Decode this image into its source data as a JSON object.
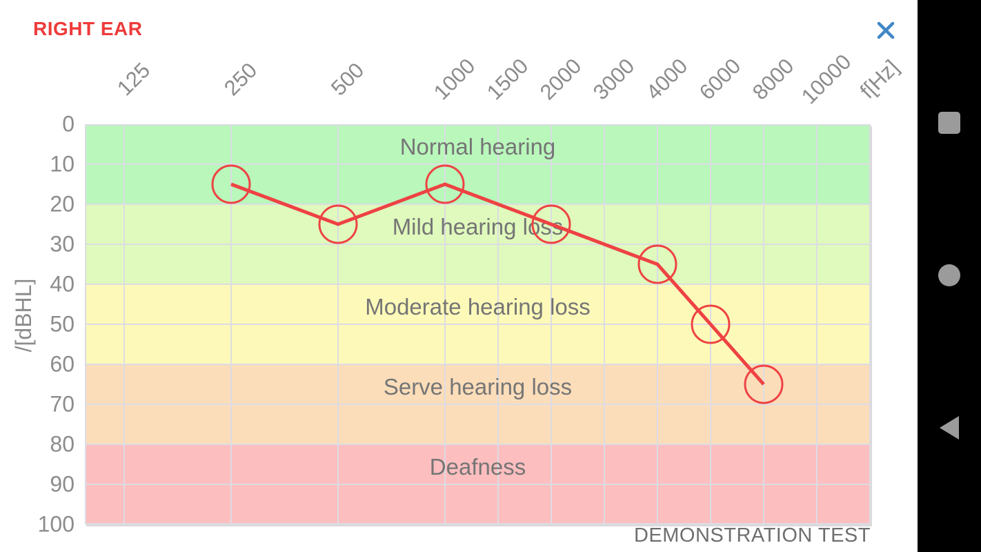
{
  "header": {
    "title": "RIGHT EAR"
  },
  "colors": {
    "title_red": "#ee3b3b",
    "line_red": "#ee4243",
    "close_blue": "#4187c7",
    "grid": "#dcdce4",
    "nav_bg": "#000000",
    "nav_icon": "#9b9b9b"
  },
  "chart_data": {
    "type": "line",
    "xlabel": "f[Hz]",
    "ylabel": "/[dBHL]",
    "x_ticks": [
      "125",
      "250",
      "500",
      "1000",
      "1500",
      "2000",
      "3000",
      "4000",
      "6000",
      "8000",
      "10000"
    ],
    "y_ticks": [
      0,
      10,
      20,
      30,
      40,
      50,
      60,
      70,
      80,
      90,
      100
    ],
    "ylim": [
      0,
      100
    ],
    "grid": true,
    "zones": [
      {
        "label": "Normal hearing",
        "from": 0,
        "to": 20,
        "color": "#b9f7bb"
      },
      {
        "label": "Mild hearing loss",
        "from": 20,
        "to": 40,
        "color": "#dffabc"
      },
      {
        "label": "Moderate hearing loss",
        "from": 40,
        "to": 60,
        "color": "#fdfab9"
      },
      {
        "label": "Serve hearing loss",
        "from": 60,
        "to": 80,
        "color": "#fcddba"
      },
      {
        "label": "Deafness",
        "from": 80,
        "to": 100,
        "color": "#fdbebf"
      }
    ],
    "series": [
      {
        "name": "right-ear-thresholds",
        "color": "#ee4243",
        "marker": "circle-outline",
        "points": [
          {
            "freq": 250,
            "db": 15
          },
          {
            "freq": 500,
            "db": 25
          },
          {
            "freq": 1000,
            "db": 15
          },
          {
            "freq": 2000,
            "db": 25
          },
          {
            "freq": 4000,
            "db": 35
          },
          {
            "freq": 6000,
            "db": 50
          },
          {
            "freq": 8000,
            "db": 65
          }
        ]
      }
    ],
    "footer": "DEMONSTRATION TEST"
  }
}
